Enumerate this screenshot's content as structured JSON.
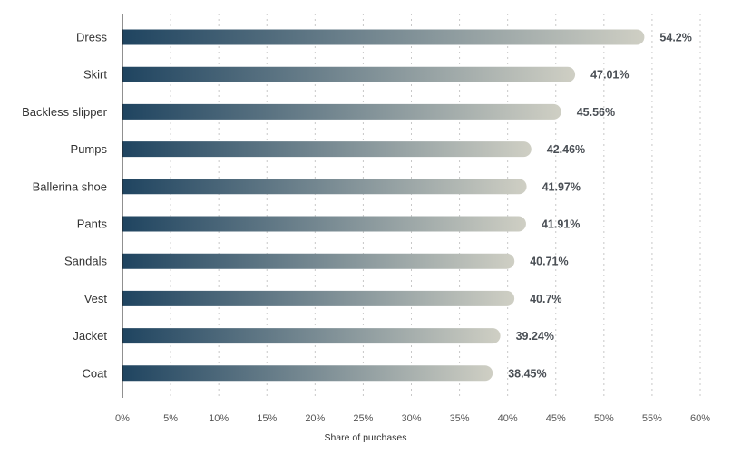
{
  "chart_data": {
    "type": "bar",
    "orientation": "horizontal",
    "categories": [
      "Dress",
      "Skirt",
      "Backless slipper",
      "Pumps",
      "Ballerina shoe",
      "Pants",
      "Sandals",
      "Vest",
      "Jacket",
      "Coat"
    ],
    "values": [
      54.2,
      47.01,
      45.56,
      42.46,
      41.97,
      41.91,
      40.71,
      40.7,
      39.24,
      38.45
    ],
    "value_labels": [
      "54.2%",
      "47.01%",
      "45.56%",
      "42.46%",
      "41.97%",
      "41.91%",
      "40.71%",
      "40.7%",
      "39.24%",
      "38.45%"
    ],
    "xlabel": "Share of purchases",
    "ylabel": "",
    "xlim": [
      0,
      60
    ],
    "ticks": [
      "0%",
      "5%",
      "10%",
      "15%",
      "20%",
      "25%",
      "30%",
      "35%",
      "40%",
      "45%",
      "50%",
      "55%",
      "60%"
    ],
    "grid": true,
    "colors": {
      "bar_start": "#1f4460",
      "bar_end": "#cfcfc4"
    }
  }
}
